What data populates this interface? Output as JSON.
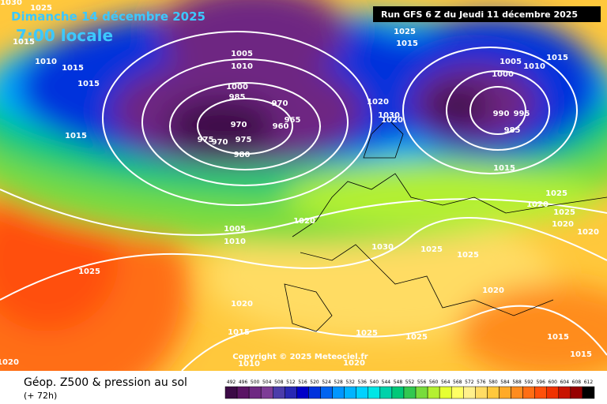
{
  "header": {
    "date": "Dimanche 14 décembre 2025",
    "time": "7:00 locale",
    "run": "Run GFS 6 Z du Jeudi 11 décembre 2025"
  },
  "footer": {
    "title": "Géop. Z500 & pression au sol",
    "lead": "(+ 72h)",
    "copyright": "Copyright © 2025 Meteociel.fr"
  },
  "colorbar": {
    "labels": [
      492,
      496,
      500,
      504,
      508,
      512,
      516,
      520,
      524,
      528,
      532,
      536,
      540,
      544,
      548,
      552,
      556,
      560,
      564,
      568,
      572,
      576,
      580,
      584,
      588,
      592,
      596,
      600,
      604,
      608,
      612
    ],
    "colors": [
      "#3c0a46",
      "#5a1464",
      "#6e2882",
      "#7d3c96",
      "#4b3caa",
      "#2828b4",
      "#0000c8",
      "#0032dc",
      "#0064f0",
      "#0096ff",
      "#00b4ff",
      "#00d2ff",
      "#00e6e6",
      "#00d2aa",
      "#00c878",
      "#32c850",
      "#78dc3c",
      "#b4f032",
      "#e6ff32",
      "#ffff64",
      "#fff08c",
      "#ffdc64",
      "#ffc83c",
      "#ffaa28",
      "#ff8c1e",
      "#ff6e14",
      "#ff500a",
      "#f03200",
      "#c81400",
      "#960000",
      "#000000"
    ]
  },
  "isobar_labels": [
    1030,
    1025,
    1015,
    1010,
    1015,
    1015,
    1015,
    1005,
    1010,
    1000,
    985,
    970,
    965,
    960,
    970,
    975,
    970,
    975,
    980,
    1025,
    1015,
    1020,
    1030,
    1020,
    1005,
    1010,
    1015,
    1000,
    990,
    995,
    985,
    1015,
    1025,
    1020,
    1025,
    1020,
    1020,
    1020,
    1005,
    1010,
    1030,
    1025,
    1025,
    1025,
    1020,
    1020,
    1015,
    1025,
    1025,
    1015,
    1015,
    1020,
    1010,
    1020
  ]
}
